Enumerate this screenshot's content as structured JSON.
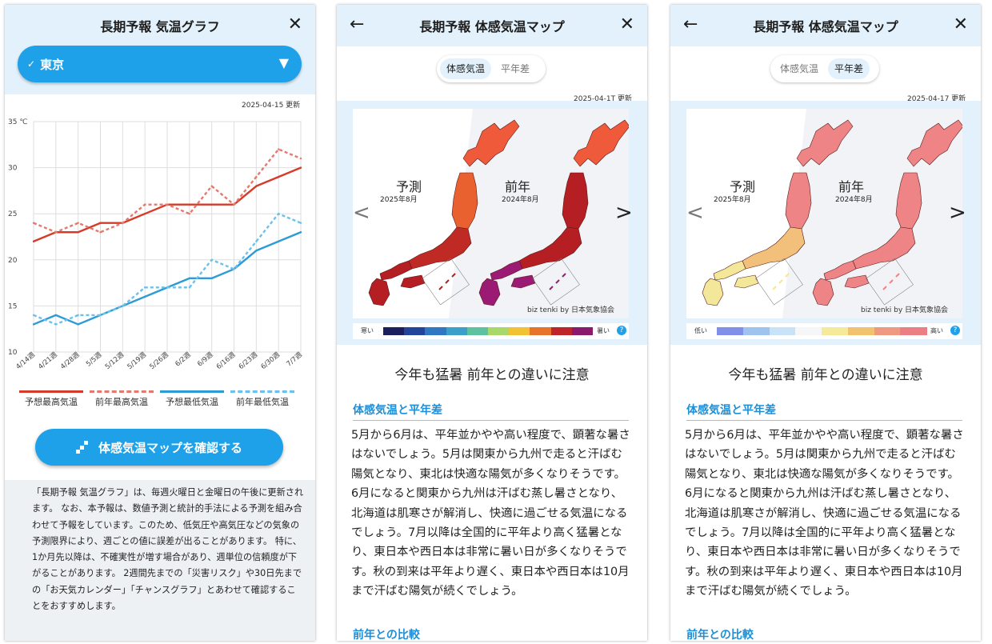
{
  "graph": {
    "title": "長期予報 気温グラフ",
    "city": "東京",
    "check_mark": "✓",
    "caret": "▼",
    "updated": "2025-04-15 更新",
    "legend": [
      {
        "label": "予想最高気温",
        "color": "#d63b2a",
        "style": "solid"
      },
      {
        "label": "前年最高気温",
        "color": "#e47a6e",
        "style": "dashed"
      },
      {
        "label": "予想最低気温",
        "color": "#2d9bd6",
        "style": "solid"
      },
      {
        "label": "前年最低気温",
        "color": "#6cc0ec",
        "style": "dashed"
      }
    ],
    "button_label": "体感気温マップを確認する",
    "note": "「長期予報 気温グラフ」は、毎週火曜日と金曜日の午後に更新されます。 なお、本予報は、数値予測と統計的手法による予測を組み合わせて予報をしています。このため、低気圧や高気圧などの気象の予測限界により、週ごとの値に誤差が出ることがあります。 特に、1か月先以降は、不確実性が増す場合があり、週単位の信頼度が下がることがあります。 2週間先までの「災害リスク」や30日先までの「お天気カレンダー」「チャンスグラフ」とあわせて確認することをおすすめします。"
  },
  "chart_data": {
    "type": "line",
    "y_unit": "℃",
    "ylim": [
      10,
      35
    ],
    "yticks": [
      10,
      15,
      20,
      25,
      30,
      35
    ],
    "ytick_labels": [
      "10",
      "15",
      "20",
      "25",
      "30",
      "35 ℃"
    ],
    "grid": true,
    "legend_position": "bottom",
    "categories": [
      "4/14週",
      "4/21週",
      "4/28週",
      "5/5週",
      "5/12週",
      "5/19週",
      "5/26週",
      "6/2週",
      "6/9週",
      "6/16週",
      "6/23週",
      "6/30週",
      "7/7週"
    ],
    "series": [
      {
        "name": "予想最高気温",
        "values": [
          22,
          23,
          23,
          24,
          24,
          25,
          26,
          26,
          26,
          26,
          28,
          29,
          30
        ],
        "color": "#d63b2a",
        "dashed": false
      },
      {
        "name": "前年最高気温",
        "values": [
          24,
          23,
          24,
          23,
          24,
          26,
          26,
          25,
          28,
          26,
          29,
          32,
          31
        ],
        "color": "#e47a6e",
        "dashed": true
      },
      {
        "name": "予想最低気温",
        "values": [
          13,
          14,
          13,
          14,
          15,
          16,
          17,
          18,
          18,
          19,
          21,
          22,
          23
        ],
        "color": "#2d9bd6",
        "dashed": false
      },
      {
        "name": "前年最低気温",
        "values": [
          14,
          13,
          14,
          14,
          15,
          17,
          17,
          17,
          20,
          19,
          22,
          25,
          24
        ],
        "color": "#6cc0ec",
        "dashed": true
      }
    ]
  },
  "map_common": {
    "title": "長期予報 体感気温マップ",
    "tab1": "体感気温",
    "tab2": "平年差",
    "updated": "2025-04-17 更新",
    "forecast_label": "予測",
    "forecast_period": "2025年8月",
    "prev_label": "前年",
    "prev_period": "2024年8月",
    "credit": "biz tenki by 日本気象協会",
    "arrow_left": "<",
    "arrow_right": ">",
    "help": "?",
    "headline": "今年も猛暑 前年との違いに注意",
    "section1": "体感気温と平年差",
    "body": "5月から6月は、平年並かやや高い程度で、顕著な暑さはないでしょう。5月は関東から九州で走ると汗ばむ陽気となり、東北は快適な陽気が多くなりそうです。6月になると関東から九州は汗ばむ蒸し暑さとなり、北海道は肌寒さが解消し、快適に過ごせる気温になるでしょう。7月以降は全国的に平年より高く猛暑となり、東日本や西日本は非常に暑い日が多くなりそうです。秋の到来は平年より遅く、東日本や西日本は10月まで汗ばむ陽気が続くでしょう。",
    "section2": "前年との比較"
  },
  "map_feel": {
    "updated": "2025-04-1T 更新",
    "scale_low": "寒い",
    "scale_high": "暑い",
    "scale_colors": [
      "#1b1f5e",
      "#22449b",
      "#2f77c2",
      "#3aa0c9",
      "#5cc2a0",
      "#a8d86a",
      "#f1c232",
      "#e8742b",
      "#c0242b",
      "#8a1a6b"
    ],
    "forecast_colors": {
      "hokkaido": "#ee5a3a",
      "tohoku": "#e8612f",
      "honshu": "#c02a25",
      "west": "#b51e22"
    },
    "prev_colors": {
      "hokkaido": "#ee5a3a",
      "tohoku": "#b51e22",
      "honshu": "#b51e22",
      "west": "#9a1a74"
    }
  },
  "map_anomaly": {
    "scale_low": "低い",
    "scale_high": "高い",
    "scale_colors": [
      "#8090e8",
      "#9ec3ee",
      "#c8e3f7",
      "#f6f6f6",
      "#f5ea9a",
      "#f2c36e",
      "#ef9a80",
      "#eb7e82"
    ],
    "forecast_colors": {
      "hokkaido": "#ef8486",
      "tohoku": "#ef8486",
      "honshu": "#f2c07a",
      "west": "#f3e79a"
    },
    "prev_colors": {
      "hokkaido": "#ef8486",
      "tohoku": "#ef8486",
      "honshu": "#ef8486",
      "west": "#ef8486"
    }
  }
}
